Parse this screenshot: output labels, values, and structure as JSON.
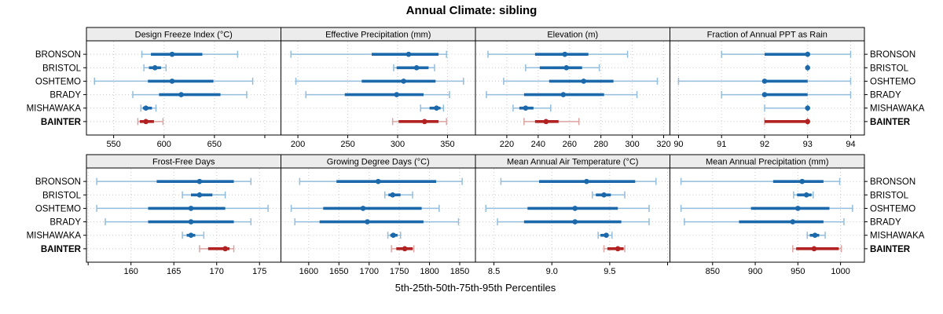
{
  "title": "Annual Climate: sibling",
  "footer_label": "5th-25th-50th-75th-95th Percentiles",
  "colors": {
    "site": "#1b69aa",
    "site_light": "#93bddc",
    "highlight": "#b22222",
    "highlight_light": "#dca3a1",
    "strip_bg": "#ececec",
    "grid": "#c9c9c9",
    "frame": "#000000"
  },
  "chart_data": {
    "type": "percentile-dotplot",
    "percentiles": [
      "5th",
      "25th",
      "50th",
      "75th",
      "95th"
    ],
    "rows": [
      "BRONSON",
      "BRISTOL",
      "OSHTEMO",
      "BRADY",
      "MISHAWAKA",
      "BAINTER"
    ],
    "highlight_row": "BAINTER",
    "layout_hint": {
      "grid": "2x4",
      "gridlines": "dotted",
      "legend": "none"
    },
    "panels": [
      {
        "title": "Design Freeze Index (°C)",
        "xlim": [
          523,
          716
        ],
        "ticks": [
          550,
          600,
          650
        ],
        "tick_labels": [
          "550",
          "600",
          "650"
        ],
        "unlabeled_ticks": [
          700
        ],
        "data": {
          "BRONSON": [
            578,
            587,
            608,
            638,
            673
          ],
          "BRISTOL": [
            580,
            585,
            591,
            597,
            602
          ],
          "OSHTEMO": [
            531,
            584,
            608,
            649,
            688
          ],
          "BRADY": [
            569,
            595,
            617,
            656,
            682
          ],
          "MISHAWAKA": [
            577,
            579,
            582,
            588,
            592
          ],
          "BAINTER": [
            574,
            576,
            582,
            590,
            599
          ]
        }
      },
      {
        "title": "Effective Precipitation (mm)",
        "xlim": [
          183,
          378
        ],
        "ticks": [
          200,
          250,
          300,
          350
        ],
        "tick_labels": [
          "200",
          "250",
          "300",
          "350"
        ],
        "unlabeled_ticks": [],
        "data": {
          "BRONSON": [
            193,
            274,
            311,
            341,
            349
          ],
          "BRISTOL": [
            296,
            299,
            319,
            331,
            337
          ],
          "OSHTEMO": [
            198,
            264,
            306,
            338,
            366
          ],
          "BRADY": [
            208,
            247,
            299,
            326,
            352
          ],
          "MISHAWAKA": [
            323,
            332,
            339,
            343,
            346
          ],
          "BAINTER": [
            295,
            301,
            327,
            341,
            349
          ]
        }
      },
      {
        "title": "Elevation (m)",
        "xlim": [
          200,
          324
        ],
        "ticks": [
          220,
          240,
          260,
          280,
          300,
          320
        ],
        "tick_labels": [
          "220",
          "240",
          "260",
          "280",
          "300",
          "320"
        ],
        "unlabeled_ticks": [],
        "data": {
          "BRONSON": [
            208,
            238,
            257,
            272,
            297
          ],
          "BRISTOL": [
            232,
            241,
            258,
            268,
            279
          ],
          "OSHTEMO": [
            218,
            247,
            269,
            288,
            316
          ],
          "BRADY": [
            207,
            231,
            256,
            282,
            303
          ],
          "MISHAWAKA": [
            224,
            228,
            232,
            237,
            248
          ],
          "BAINTER": [
            231,
            238,
            245,
            253,
            266
          ]
        }
      },
      {
        "title": "Fraction of Annual PPT as Rain",
        "xlim": [
          89.8,
          94.32
        ],
        "ticks": [
          90,
          91,
          92,
          93,
          94
        ],
        "tick_labels": [
          "90",
          "91",
          "92",
          "93",
          "94"
        ],
        "unlabeled_ticks": [],
        "data": {
          "BRONSON": [
            91,
            92,
            93,
            93,
            94
          ],
          "BRISTOL": [
            93,
            93,
            93,
            93,
            93
          ],
          "OSHTEMO": [
            90,
            92,
            92,
            93,
            94
          ],
          "BRADY": [
            91,
            92,
            92,
            93,
            94
          ],
          "MISHAWAKA": [
            92,
            93,
            93,
            93,
            93
          ],
          "BAINTER": [
            92,
            92,
            93,
            93,
            93
          ]
        }
      },
      {
        "title": "Frost-Free Days",
        "xlim": [
          154.8,
          177.5
        ],
        "ticks": [
          160,
          165,
          170,
          175
        ],
        "tick_labels": [
          "160",
          "165",
          "170",
          "175"
        ],
        "unlabeled_ticks": [
          155
        ],
        "data": {
          "BRONSON": [
            156,
            163,
            168,
            172,
            174
          ],
          "BRISTOL": [
            166,
            167,
            168,
            169.5,
            171
          ],
          "OSHTEMO": [
            156,
            162,
            167,
            171,
            176
          ],
          "BRADY": [
            157,
            162,
            167,
            172,
            174
          ],
          "MISHAWAKA": [
            166,
            166.5,
            167,
            167.5,
            168.5
          ],
          "BAINTER": [
            168,
            169,
            171,
            171.5,
            172
          ]
        }
      },
      {
        "title": "Growing Degree Days (°C)",
        "xlim": [
          1554,
          1876
        ],
        "ticks": [
          1600,
          1650,
          1700,
          1750,
          1800,
          1850
        ],
        "tick_labels": [
          "1600",
          "1650",
          "1700",
          "1750",
          "1800",
          "1850"
        ],
        "unlabeled_ticks": [],
        "data": {
          "BRONSON": [
            1585,
            1646,
            1715,
            1811,
            1854
          ],
          "BRISTOL": [
            1726,
            1732,
            1739,
            1752,
            1772
          ],
          "OSHTEMO": [
            1571,
            1624,
            1690,
            1787,
            1816
          ],
          "BRADY": [
            1577,
            1618,
            1697,
            1790,
            1848
          ],
          "MISHAWAKA": [
            1731,
            1735,
            1740,
            1747,
            1752
          ],
          "BAINTER": [
            1737,
            1745,
            1759,
            1772,
            1774
          ]
        }
      },
      {
        "title": "Mean Annual Air Temperature (°C)",
        "xlim": [
          8.34,
          10.02
        ],
        "ticks": [
          8.5,
          9.0,
          9.5
        ],
        "tick_labels": [
          "8.5",
          "9.0",
          "9.5"
        ],
        "unlabeled_ticks": [
          10.0
        ],
        "data": {
          "BRONSON": [
            8.56,
            8.89,
            9.3,
            9.72,
            9.9
          ],
          "BRISTOL": [
            9.35,
            9.38,
            9.45,
            9.51,
            9.63
          ],
          "OSHTEMO": [
            8.43,
            8.79,
            9.2,
            9.57,
            9.84
          ],
          "BRADY": [
            8.53,
            8.76,
            9.2,
            9.6,
            9.84
          ],
          "MISHAWAKA": [
            9.4,
            9.42,
            9.47,
            9.49,
            9.52
          ],
          "BAINTER": [
            9.45,
            9.48,
            9.57,
            9.62,
            9.63
          ]
        }
      },
      {
        "title": "Mean Annual Precipitation (mm)",
        "xlim": [
          800,
          1028
        ],
        "ticks": [
          850,
          900,
          950,
          1000
        ],
        "tick_labels": [
          "850",
          "900",
          "950",
          "1000"
        ],
        "unlabeled_ticks": [],
        "data": {
          "BRONSON": [
            813,
            921,
            955,
            980,
            999
          ],
          "BRISTOL": [
            945,
            949,
            960,
            966,
            968
          ],
          "OSHTEMO": [
            813,
            895,
            950,
            987,
            1014
          ],
          "BRADY": [
            817,
            881,
            944,
            980,
            1004
          ],
          "MISHAWAKA": [
            961,
            964,
            970,
            975,
            982
          ],
          "BAINTER": [
            944,
            948,
            969,
            998,
            1001
          ]
        }
      }
    ]
  }
}
